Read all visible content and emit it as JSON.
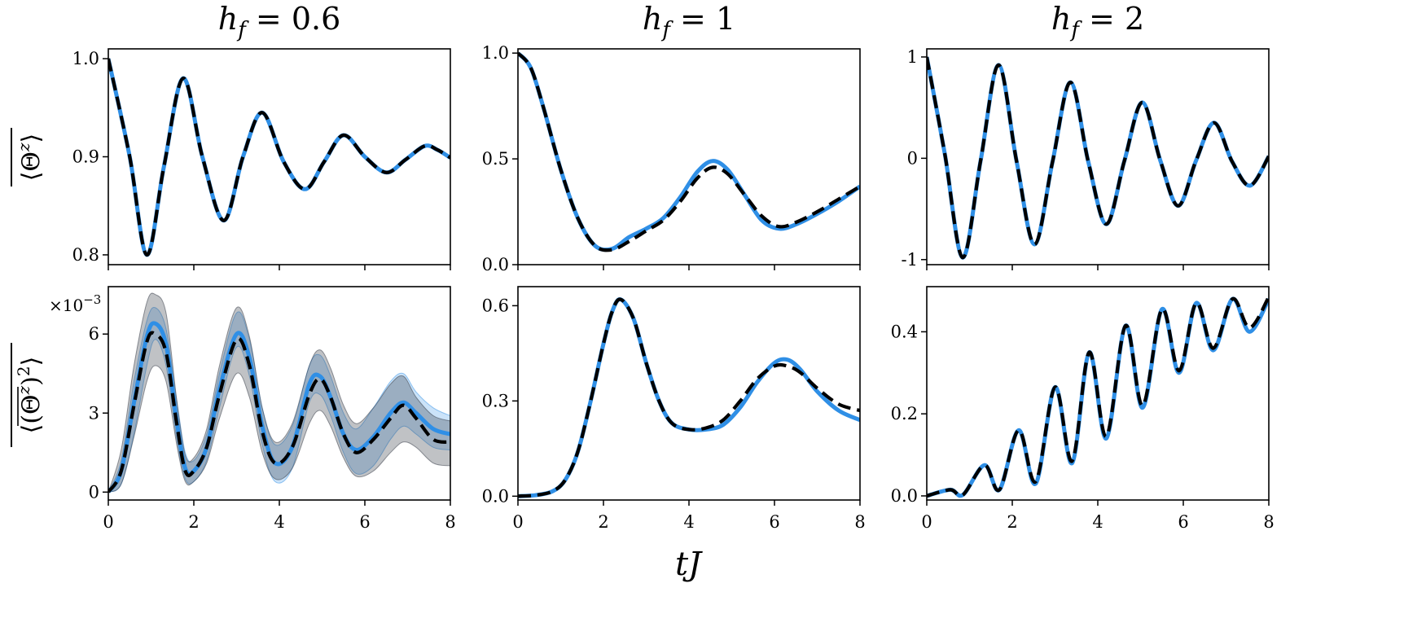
{
  "figure": {
    "column_titles": [
      "h_f = 0.6",
      "h_f = 1",
      "h_f = 2"
    ],
    "xlabel": "tJ",
    "row_ylabels": [
      "⟨Θ^z⟩ (overlined)",
      "⟨(Θ^z)^2⟩ (overlined)"
    ]
  },
  "chart_data": [
    {
      "type": "line",
      "row": 0,
      "col": 0,
      "title": "h_f = 0.6",
      "xlabel": "",
      "ylabel": "⟨Θ^z⟩ (overlined)",
      "xlim": [
        0,
        8
      ],
      "ylim": [
        0.79,
        1.01
      ],
      "xticks": [
        0,
        2,
        4,
        6,
        8
      ],
      "xtick_labels": [
        "",
        "",
        "",
        "",
        ""
      ],
      "yticks": [
        0.8,
        0.9,
        1.0
      ],
      "ytick_labels": [
        "0.8",
        "0.9",
        "1.0"
      ],
      "x": [
        0,
        0.5,
        0.9,
        1.3,
        1.75,
        2.2,
        2.7,
        3.15,
        3.6,
        4.1,
        4.6,
        5.05,
        5.5,
        6.0,
        6.5,
        6.95,
        7.4,
        7.7,
        8.0
      ],
      "series": [
        {
          "color": "#2f8fe6",
          "style": "solid",
          "values": [
            1.0,
            0.9,
            0.8,
            0.89,
            0.98,
            0.9,
            0.835,
            0.9,
            0.945,
            0.895,
            0.867,
            0.895,
            0.922,
            0.9,
            0.884,
            0.897,
            0.911,
            0.907,
            0.899
          ]
        },
        {
          "color": "#000000",
          "style": "dashed",
          "values": [
            1.0,
            0.9,
            0.8,
            0.89,
            0.98,
            0.9,
            0.835,
            0.9,
            0.945,
            0.895,
            0.867,
            0.895,
            0.922,
            0.9,
            0.884,
            0.897,
            0.911,
            0.907,
            0.899
          ]
        }
      ]
    },
    {
      "type": "line",
      "row": 0,
      "col": 1,
      "title": "h_f = 1",
      "xlabel": "",
      "ylabel": "",
      "xlim": [
        0,
        8
      ],
      "ylim": [
        0,
        1.02
      ],
      "xticks": [
        0,
        2,
        4,
        6,
        8
      ],
      "xtick_labels": [
        "",
        "",
        "",
        "",
        ""
      ],
      "yticks": [
        0.0,
        0.5,
        1.0
      ],
      "ytick_labels": [
        "0.0",
        "0.5",
        "1.0"
      ],
      "x": [
        0,
        0.3,
        0.6,
        1.0,
        1.4,
        1.8,
        2.2,
        2.6,
        3.0,
        3.4,
        3.8,
        4.2,
        4.55,
        4.9,
        5.3,
        5.7,
        6.1,
        6.5,
        7.0,
        7.5,
        8.0
      ],
      "series": [
        {
          "color": "#2f8fe6",
          "style": "solid",
          "values": [
            1.0,
            0.93,
            0.74,
            0.45,
            0.22,
            0.09,
            0.075,
            0.13,
            0.17,
            0.22,
            0.32,
            0.44,
            0.49,
            0.45,
            0.33,
            0.21,
            0.17,
            0.19,
            0.24,
            0.3,
            0.37
          ]
        },
        {
          "color": "#000000",
          "style": "dashed",
          "values": [
            1.0,
            0.93,
            0.74,
            0.45,
            0.22,
            0.09,
            0.07,
            0.11,
            0.16,
            0.21,
            0.3,
            0.41,
            0.46,
            0.43,
            0.33,
            0.23,
            0.18,
            0.2,
            0.25,
            0.31,
            0.37
          ]
        }
      ]
    },
    {
      "type": "line",
      "row": 0,
      "col": 2,
      "title": "h_f = 2",
      "xlabel": "",
      "ylabel": "",
      "xlim": [
        0,
        8
      ],
      "ylim": [
        -1.05,
        1.08
      ],
      "xticks": [
        0,
        2,
        4,
        6,
        8
      ],
      "xtick_labels": [
        "",
        "",
        "",
        "",
        ""
      ],
      "yticks": [
        -1,
        0,
        1
      ],
      "ytick_labels": [
        "-1",
        "0",
        "1"
      ],
      "x": [
        0,
        0.42,
        0.84,
        1.26,
        1.68,
        2.1,
        2.52,
        2.94,
        3.36,
        3.78,
        4.2,
        4.62,
        5.04,
        5.46,
        5.88,
        6.3,
        6.72,
        7.14,
        7.56,
        8.0
      ],
      "series": [
        {
          "color": "#2f8fe6",
          "style": "solid",
          "values": [
            1.0,
            0.05,
            -0.98,
            -0.02,
            0.92,
            -0.03,
            -0.85,
            -0.04,
            0.75,
            -0.04,
            -0.65,
            -0.03,
            0.55,
            -0.02,
            -0.47,
            -0.02,
            0.35,
            -0.03,
            -0.27,
            0.02
          ]
        },
        {
          "color": "#000000",
          "style": "dashed",
          "values": [
            1.0,
            0.05,
            -0.98,
            -0.02,
            0.92,
            -0.03,
            -0.85,
            -0.04,
            0.75,
            -0.04,
            -0.65,
            -0.03,
            0.55,
            -0.02,
            -0.47,
            -0.02,
            0.35,
            -0.03,
            -0.27,
            0.02
          ]
        }
      ]
    },
    {
      "type": "line",
      "row": 1,
      "col": 0,
      "title": "",
      "xlabel": "",
      "ylabel": "⟨(Θ^z)^2⟩ (overlined)",
      "multiplier": "×10^−3",
      "xlim": [
        0,
        8
      ],
      "ylim": [
        -0.0003,
        0.0078
      ],
      "xticks": [
        0,
        2,
        4,
        6,
        8
      ],
      "xtick_labels": [
        "0",
        "2",
        "4",
        "6",
        "8"
      ],
      "yticks": [
        0,
        0.003,
        0.006
      ],
      "ytick_labels": [
        "0",
        "3",
        "6"
      ],
      "x": [
        0,
        0.3,
        0.6,
        0.9,
        1.1,
        1.35,
        1.6,
        1.8,
        2.0,
        2.3,
        2.6,
        3.0,
        3.3,
        3.6,
        3.9,
        4.3,
        4.7,
        4.95,
        5.2,
        5.5,
        5.8,
        6.2,
        6.6,
        6.9,
        7.2,
        7.6,
        8.0
      ],
      "bands": [
        {
          "color": "#2f8fe6",
          "opacity": 0.25,
          "lower": [
            0,
            0.0003,
            0.0022,
            0.0048,
            0.0058,
            0.0048,
            0.002,
            0.0005,
            0.0004,
            0.0012,
            0.0032,
            0.0055,
            0.0044,
            0.0018,
            0.0004,
            0.0009,
            0.0034,
            0.0037,
            0.0029,
            0.0015,
            0.0007,
            0.001,
            0.002,
            0.0025,
            0.0022,
            0.0017,
            0.0016
          ],
          "upper": [
            0,
            0.0012,
            0.0042,
            0.0065,
            0.007,
            0.0062,
            0.0035,
            0.0015,
            0.0012,
            0.0022,
            0.0045,
            0.0068,
            0.0058,
            0.0032,
            0.0018,
            0.0025,
            0.0048,
            0.0052,
            0.0044,
            0.003,
            0.0024,
            0.0032,
            0.0042,
            0.0045,
            0.0038,
            0.0032,
            0.0029
          ]
        },
        {
          "color": "#2e3440",
          "opacity": 0.3,
          "lower": [
            0,
            0.0003,
            0.0021,
            0.0042,
            0.0048,
            0.0042,
            0.0018,
            0.0004,
            0.0004,
            0.0011,
            0.0028,
            0.0045,
            0.0036,
            0.0015,
            0.0005,
            0.0009,
            0.0026,
            0.0031,
            0.0025,
            0.0013,
            0.0006,
            0.0008,
            0.0015,
            0.0019,
            0.0017,
            0.0011,
            0.001
          ],
          "upper": [
            0,
            0.0016,
            0.0048,
            0.0072,
            0.0075,
            0.0068,
            0.0035,
            0.0014,
            0.0013,
            0.0024,
            0.0048,
            0.007,
            0.0059,
            0.0032,
            0.0019,
            0.0026,
            0.0048,
            0.0054,
            0.0047,
            0.0033,
            0.0026,
            0.0032,
            0.0041,
            0.0044,
            0.0036,
            0.0029,
            0.0027
          ]
        }
      ],
      "series": [
        {
          "color": "#2f8fe6",
          "style": "solid",
          "values": [
            0,
            0.0008,
            0.0034,
            0.0059,
            0.0064,
            0.0056,
            0.0027,
            0.0009,
            0.0008,
            0.0017,
            0.0039,
            0.006,
            0.0051,
            0.0025,
            0.0011,
            0.0017,
            0.0041,
            0.0044,
            0.0036,
            0.0022,
            0.0016,
            0.0021,
            0.003,
            0.0034,
            0.003,
            0.0024,
            0.0022
          ]
        },
        {
          "color": "#000000",
          "style": "dashed",
          "values": [
            0,
            0.0008,
            0.0033,
            0.0057,
            0.006,
            0.0053,
            0.0026,
            0.0008,
            0.0008,
            0.0017,
            0.0037,
            0.0058,
            0.0048,
            0.0023,
            0.0011,
            0.0017,
            0.0037,
            0.0043,
            0.0036,
            0.0022,
            0.0015,
            0.002,
            0.0028,
            0.0033,
            0.0028,
            0.002,
            0.0019
          ]
        }
      ]
    },
    {
      "type": "line",
      "row": 1,
      "col": 1,
      "title": "",
      "xlabel": "",
      "ylabel": "",
      "xlim": [
        0,
        8
      ],
      "ylim": [
        -0.012,
        0.66
      ],
      "xticks": [
        0,
        2,
        4,
        6,
        8
      ],
      "xtick_labels": [
        "0",
        "2",
        "4",
        "6",
        "8"
      ],
      "yticks": [
        0.0,
        0.3,
        0.6
      ],
      "ytick_labels": [
        "0.0",
        "0.3",
        "0.6"
      ],
      "x": [
        0,
        0.4,
        0.8,
        1.1,
        1.4,
        1.7,
        2.0,
        2.2,
        2.4,
        2.7,
        3.0,
        3.3,
        3.6,
        4.0,
        4.4,
        4.8,
        5.2,
        5.6,
        6.0,
        6.3,
        6.6,
        7.0,
        7.5,
        8.0
      ],
      "series": [
        {
          "color": "#2f8fe6",
          "style": "solid",
          "values": [
            0,
            0.003,
            0.015,
            0.05,
            0.14,
            0.3,
            0.48,
            0.58,
            0.62,
            0.56,
            0.42,
            0.3,
            0.23,
            0.21,
            0.21,
            0.225,
            0.28,
            0.36,
            0.42,
            0.43,
            0.4,
            0.33,
            0.27,
            0.24
          ]
        },
        {
          "color": "#000000",
          "style": "dashed",
          "values": [
            0,
            0.003,
            0.015,
            0.05,
            0.14,
            0.3,
            0.48,
            0.58,
            0.62,
            0.56,
            0.42,
            0.3,
            0.23,
            0.21,
            0.215,
            0.24,
            0.3,
            0.37,
            0.41,
            0.41,
            0.39,
            0.34,
            0.29,
            0.27
          ]
        }
      ]
    },
    {
      "type": "line",
      "row": 1,
      "col": 2,
      "title": "",
      "xlabel": "",
      "ylabel": "",
      "xlim": [
        0,
        8
      ],
      "ylim": [
        -0.01,
        0.51
      ],
      "xticks": [
        0,
        2,
        4,
        6,
        8
      ],
      "xtick_labels": [
        "0",
        "2",
        "4",
        "6",
        "8"
      ],
      "yticks": [
        0.0,
        0.2,
        0.4
      ],
      "ytick_labels": [
        "0.0",
        "0.2",
        "0.4"
      ],
      "x": [
        0,
        0.55,
        0.85,
        1.35,
        1.7,
        2.15,
        2.55,
        3.0,
        3.4,
        3.8,
        4.2,
        4.65,
        5.05,
        5.5,
        5.9,
        6.3,
        6.7,
        7.15,
        7.55,
        8.0
      ],
      "series": [
        {
          "color": "#2f8fe6",
          "style": "solid",
          "values": [
            0,
            0.015,
            0.003,
            0.075,
            0.015,
            0.16,
            0.03,
            0.265,
            0.08,
            0.35,
            0.14,
            0.415,
            0.215,
            0.455,
            0.3,
            0.47,
            0.355,
            0.48,
            0.4,
            0.48
          ]
        },
        {
          "color": "#000000",
          "style": "dashed",
          "values": [
            0,
            0.015,
            0.003,
            0.075,
            0.015,
            0.16,
            0.035,
            0.265,
            0.085,
            0.35,
            0.145,
            0.415,
            0.22,
            0.455,
            0.305,
            0.47,
            0.36,
            0.48,
            0.41,
            0.485
          ]
        }
      ]
    }
  ]
}
